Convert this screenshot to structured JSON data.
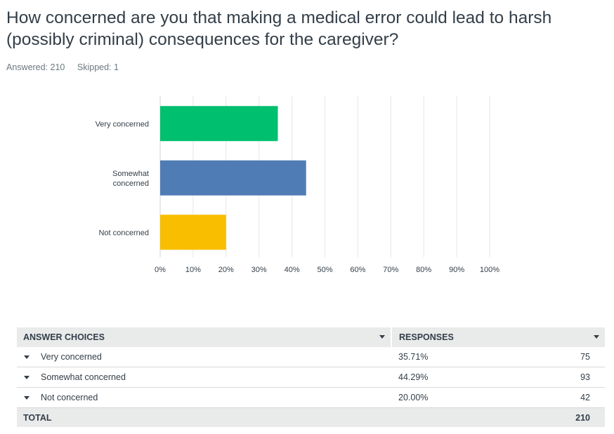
{
  "question": {
    "title": "How concerned are you that making a medical error could lead to harsh (possibly criminal) consequences for the caregiver?",
    "answered": "Answered: 210",
    "skipped": "Skipped: 1"
  },
  "colors": {
    "very_concerned": "#00bf6f",
    "somewhat_concerned": "#507cb6",
    "not_concerned": "#f9be00",
    "grid": "#e6e6e6"
  },
  "chart_data": {
    "type": "bar",
    "orientation": "horizontal",
    "categories": [
      {
        "label": [
          "Very concerned"
        ],
        "value": 35.71,
        "color": "#00bf6f"
      },
      {
        "label": [
          "Somewhat",
          "concerned"
        ],
        "value": 44.29,
        "color": "#507cb6"
      },
      {
        "label": [
          "Not concerned"
        ],
        "value": 20.0,
        "color": "#f9be00"
      }
    ],
    "xlim": [
      0,
      100
    ],
    "xticks": [
      "0%",
      "10%",
      "20%",
      "30%",
      "40%",
      "50%",
      "60%",
      "70%",
      "80%",
      "90%",
      "100%"
    ],
    "grid": true
  },
  "table": {
    "headers": {
      "choices": "ANSWER CHOICES",
      "responses": "RESPONSES"
    },
    "rows": [
      {
        "choice": "Very concerned",
        "percent": "35.71%",
        "count": "75"
      },
      {
        "choice": "Somewhat concerned",
        "percent": "44.29%",
        "count": "93"
      },
      {
        "choice": "Not concerned",
        "percent": "20.00%",
        "count": "42"
      }
    ],
    "total": {
      "label": "TOTAL",
      "count": "210"
    }
  }
}
